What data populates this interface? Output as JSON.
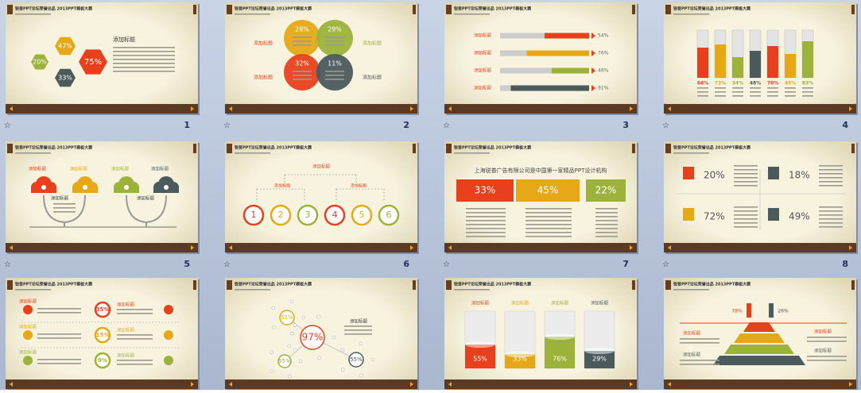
{
  "slide_header": "锐普PPT论坛荣誉出品 2013PPT模板大赛",
  "label_text": "添加标题",
  "slides": [
    {
      "number": "1",
      "labels": [
        "47%",
        "20%",
        "75%",
        "33%"
      ]
    },
    {
      "number": "2",
      "labels": [
        "28%",
        "29%",
        "32%",
        "11%"
      ]
    },
    {
      "number": "3",
      "labels": [
        "54%",
        "76%",
        "46%",
        "91%"
      ]
    },
    {
      "number": "4",
      "labels": [
        "66%",
        "73%",
        "34%",
        "48%",
        "70%",
        "45%",
        "83%"
      ]
    },
    {
      "number": "5",
      "labels": []
    },
    {
      "number": "6",
      "labels": [
        "1",
        "2",
        "3",
        "4",
        "5",
        "6"
      ]
    },
    {
      "number": "7",
      "title": "上海锐普广告有限公司是中国第一家精品PPT设计机构",
      "labels": [
        "33%",
        "45%",
        "22%"
      ]
    },
    {
      "number": "8",
      "labels": [
        "20%",
        "18%",
        "72%",
        "49%"
      ]
    },
    {
      "labels": [
        "35%",
        "15%",
        "9%"
      ]
    },
    {
      "labels": [
        "97%",
        "51%",
        "55%",
        "55%"
      ]
    },
    {
      "labels": [
        "55%",
        "33%",
        "76%",
        "29%"
      ]
    },
    {
      "labels": [
        "78%",
        "26%"
      ]
    }
  ]
}
